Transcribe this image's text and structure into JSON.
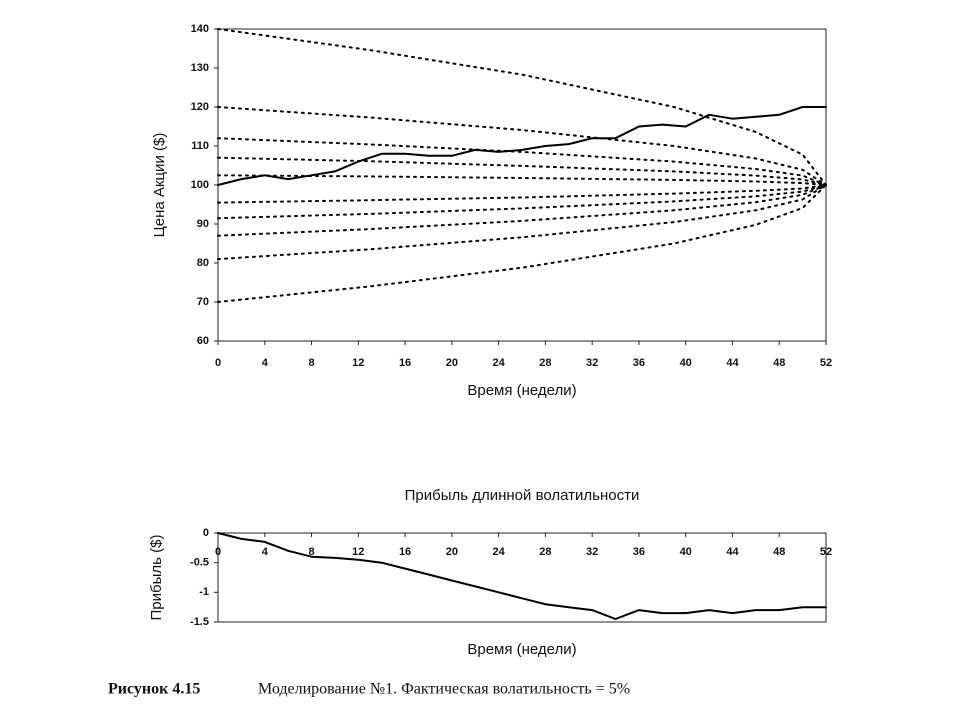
{
  "chart_data": [
    {
      "type": "line",
      "y_label": "Цена Акции ($)",
      "x_label": "Время (недели)",
      "xlim": [
        0,
        52
      ],
      "xticks": [
        0,
        4,
        8,
        12,
        16,
        20,
        24,
        28,
        32,
        36,
        40,
        44,
        48,
        52
      ],
      "ylim": [
        60,
        140
      ],
      "yticks": [
        60,
        70,
        80,
        90,
        100,
        110,
        120,
        130,
        140
      ],
      "x": [
        0,
        2,
        4,
        6,
        8,
        10,
        12,
        14,
        16,
        18,
        20,
        22,
        24,
        26,
        28,
        30,
        32,
        34,
        36,
        38,
        40,
        42,
        44,
        46,
        48,
        50,
        52
      ],
      "series": [
        {
          "color": "#000000",
          "style": "solid",
          "values": [
            100,
            101.5,
            102.5,
            101.5,
            102.5,
            103.5,
            106,
            108,
            108,
            107.5,
            107.5,
            109,
            108.5,
            109,
            110,
            110.5,
            112,
            112,
            115,
            115.5,
            115,
            118,
            117,
            117.5,
            118,
            120,
            120
          ]
        },
        {
          "color": "#000000",
          "style": "dotted",
          "x": [
            0,
            13,
            26,
            39,
            46,
            50,
            52
          ],
          "values": [
            140,
            134.6,
            128.3,
            120,
            113.6,
            107.8,
            100
          ]
        },
        {
          "color": "#000000",
          "style": "dotted",
          "x": [
            0,
            13,
            26,
            39,
            46,
            50,
            52
          ],
          "values": [
            120,
            117.3,
            114.1,
            110,
            106.8,
            103.9,
            100
          ]
        },
        {
          "color": "#000000",
          "style": "dotted",
          "x": [
            0,
            13,
            26,
            39,
            46,
            50,
            52
          ],
          "values": [
            112,
            110.4,
            108.5,
            106,
            104.1,
            102.4,
            100
          ]
        },
        {
          "color": "#000000",
          "style": "dotted",
          "x": [
            0,
            13,
            26,
            39,
            46,
            50,
            52
          ],
          "values": [
            107,
            106.1,
            104.9,
            103.5,
            102.4,
            101.4,
            100
          ]
        },
        {
          "color": "#000000",
          "style": "dotted",
          "x": [
            0,
            13,
            26,
            39,
            46,
            50,
            52
          ],
          "values": [
            102.5,
            102.2,
            101.8,
            101.3,
            100.9,
            100.5,
            100
          ]
        },
        {
          "color": "#000000",
          "style": "dotted",
          "x": [
            0,
            13,
            26,
            39,
            46,
            50,
            52
          ],
          "values": [
            95.5,
            96.1,
            96.8,
            97.8,
            98.5,
            99.1,
            100
          ]
        },
        {
          "color": "#000000",
          "style": "dotted",
          "x": [
            0,
            13,
            26,
            39,
            46,
            50,
            52
          ],
          "values": [
            91.5,
            92.6,
            94,
            95.8,
            97.1,
            98.3,
            100
          ]
        },
        {
          "color": "#000000",
          "style": "dotted",
          "x": [
            0,
            13,
            26,
            39,
            46,
            50,
            52
          ],
          "values": [
            87,
            88.7,
            90.8,
            93.5,
            95.6,
            97.5,
            100
          ]
        },
        {
          "color": "#000000",
          "style": "dotted",
          "x": [
            0,
            13,
            26,
            39,
            46,
            50,
            52
          ],
          "values": [
            81,
            83.5,
            86.6,
            90.5,
            93.5,
            96.3,
            100
          ]
        },
        {
          "color": "#000000",
          "style": "dotted",
          "x": [
            0,
            13,
            26,
            39,
            46,
            50,
            52
          ],
          "values": [
            70,
            74,
            78.8,
            85,
            89.8,
            94.1,
            100
          ]
        }
      ]
    },
    {
      "type": "line",
      "title": "Прибыль длинной волатильности",
      "y_label": "Прибыль ($)",
      "x_label": "Время (недели)",
      "xlim": [
        0,
        52
      ],
      "xticks": [
        0,
        4,
        8,
        12,
        16,
        20,
        24,
        28,
        32,
        36,
        40,
        44,
        48,
        52
      ],
      "ylim": [
        -1.5,
        0
      ],
      "yticks": [
        -1.5,
        -1,
        -0.5,
        0
      ],
      "x": [
        0,
        2,
        4,
        6,
        8,
        10,
        12,
        14,
        16,
        18,
        20,
        22,
        24,
        26,
        28,
        30,
        32,
        34,
        36,
        38,
        40,
        42,
        44,
        46,
        48,
        50,
        52
      ],
      "series": [
        {
          "color": "#000000",
          "style": "solid",
          "values": [
            0,
            -0.1,
            -0.15,
            -0.3,
            -0.4,
            -0.42,
            -0.45,
            -0.5,
            -0.6,
            -0.7,
            -0.8,
            -0.9,
            -1,
            -1.1,
            -1.2,
            -1.25,
            -1.3,
            -1.45,
            -1.3,
            -1.35,
            -1.35,
            -1.3,
            -1.35,
            -1.3,
            -1.3,
            -1.25,
            -1.25
          ]
        }
      ]
    }
  ],
  "caption": {
    "label": "Рисунок 4.15",
    "text": "Моделирование №1. Фактическая волатильность = 5%"
  }
}
